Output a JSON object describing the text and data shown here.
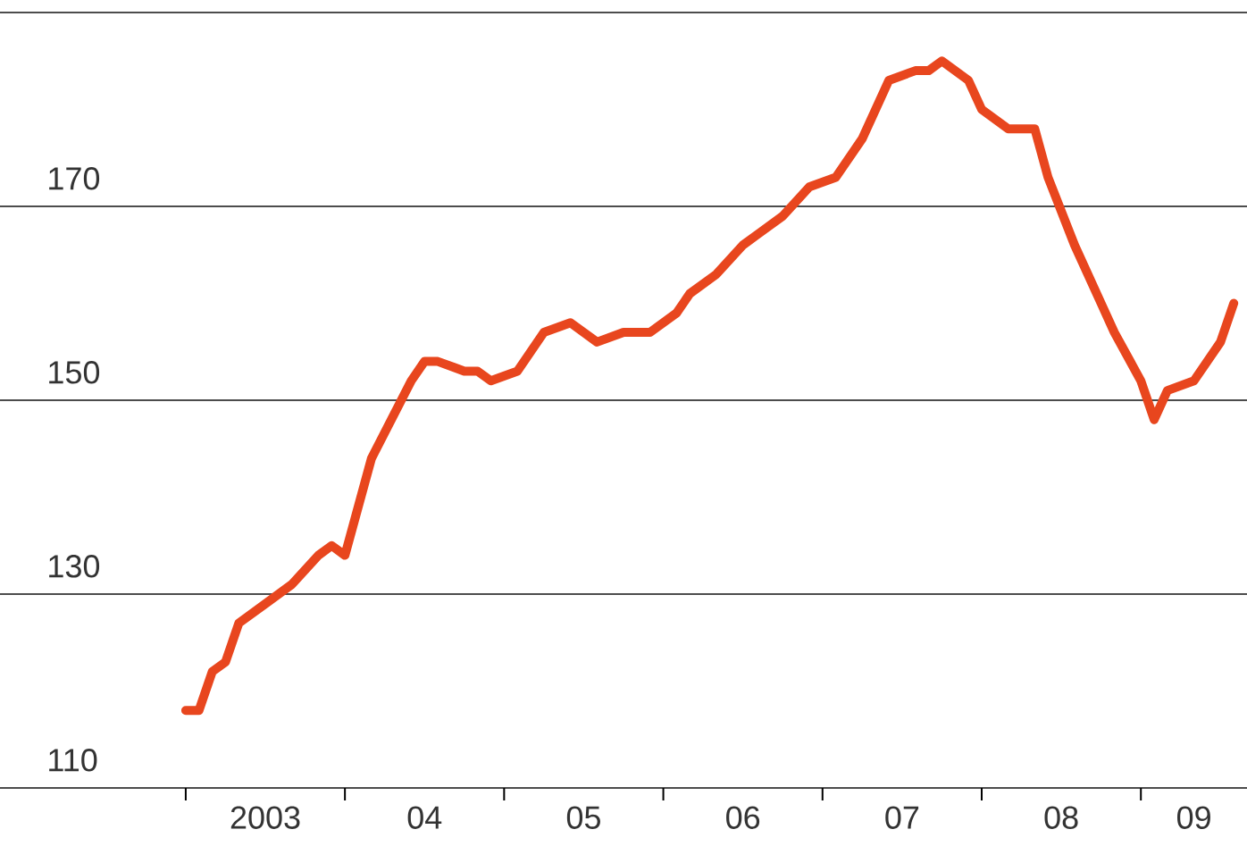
{
  "chart_data": {
    "type": "line",
    "color": "#e8461e",
    "line_style": "solid",
    "marker": "none",
    "grid": "y",
    "x": [
      "2003-01",
      "2003-02",
      "2003-03",
      "2003-04",
      "2003-05",
      "2003-07",
      "2003-09",
      "2003-11",
      "2003-12",
      "2004-01",
      "2004-03",
      "2004-06",
      "2004-07",
      "2004-08",
      "2004-10",
      "2004-11",
      "2004-12",
      "2005-02",
      "2005-03",
      "2005-04",
      "2005-06",
      "2005-08",
      "2005-10",
      "2005-12",
      "2006-02",
      "2006-03",
      "2006-05",
      "2006-07",
      "2006-08",
      "2006-10",
      "2006-12",
      "2007-02",
      "2007-04",
      "2007-05",
      "2007-06",
      "2007-08",
      "2007-09",
      "2007-10",
      "2007-12",
      "2008-01",
      "2008-03",
      "2008-05",
      "2008-06",
      "2008-08",
      "2008-10",
      "2008-11",
      "2009-01",
      "2009-02",
      "2009-03",
      "2009-05",
      "2009-07",
      "2009-08"
    ],
    "values": [
      118,
      118,
      122,
      123,
      127,
      129,
      131,
      134,
      135,
      134,
      144,
      152,
      154,
      154,
      153,
      153,
      152,
      153,
      155,
      157,
      158,
      156,
      157,
      157,
      159,
      161,
      163,
      166,
      167,
      169,
      172,
      173,
      177,
      180,
      183,
      184,
      184,
      185,
      183,
      180,
      178,
      178,
      173,
      166,
      160,
      157,
      152,
      148,
      151,
      152,
      156,
      160
    ],
    "xlim": [
      "2001-11",
      "2009-09"
    ],
    "ylim": [
      110,
      190
    ],
    "xticks": [
      {
        "value": "2003-01",
        "label": null
      },
      {
        "value": "2004-01",
        "label": null
      },
      {
        "value": "2005-01",
        "label": null
      },
      {
        "value": "2006-01",
        "label": null
      },
      {
        "value": "2007-01",
        "label": null
      },
      {
        "value": "2008-01",
        "label": null
      },
      {
        "value": "2009-01",
        "label": null
      },
      {
        "value": "2003-07",
        "label": "2003"
      },
      {
        "value": "2004-07",
        "label": "04"
      },
      {
        "value": "2005-07",
        "label": "05"
      },
      {
        "value": "2006-07",
        "label": "06"
      },
      {
        "value": "2007-07",
        "label": "07"
      },
      {
        "value": "2008-07",
        "label": "08"
      },
      {
        "value": "2009-05",
        "label": "09"
      }
    ],
    "yticks": [
      110,
      130,
      150,
      170,
      {
        "value": 190,
        "label": null
      }
    ]
  }
}
